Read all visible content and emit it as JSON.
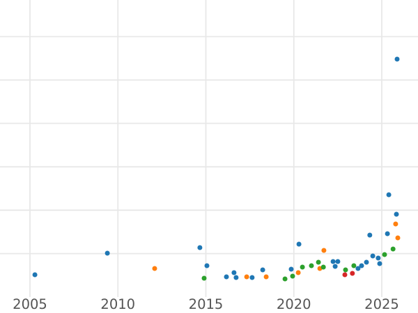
{
  "chart_data": {
    "type": "scatter",
    "title": "",
    "xlabel": "",
    "ylabel": "",
    "grid": true,
    "legend": "none",
    "marker_size_px": 7,
    "x_axis": {
      "ticks": [
        2005,
        2010,
        2015,
        2020,
        2025
      ],
      "tick_labels": [
        "2005",
        "2010",
        "2015",
        "2020",
        "2025"
      ],
      "range": [
        2003.3,
        2027.1
      ]
    },
    "y_axis": {
      "ticks": [
        1,
        2,
        3,
        4,
        5,
        6
      ],
      "tick_labels": [],
      "labels_visible": false,
      "range": [
        0,
        6.84
      ],
      "units": "gridline-spacings-above-bottom-axis"
    },
    "series": [
      {
        "name": "series-blue",
        "color": "#1f77b4",
        "points": [
          [
            2005.28,
            0.513
          ],
          [
            2009.4,
            1.01
          ],
          [
            2014.66,
            1.138
          ],
          [
            2015.06,
            0.721
          ],
          [
            2016.17,
            0.465
          ],
          [
            2016.6,
            0.561
          ],
          [
            2016.72,
            0.449
          ],
          [
            2017.63,
            0.449
          ],
          [
            2018.23,
            0.625
          ],
          [
            2019.85,
            0.641
          ],
          [
            2020.29,
            1.218
          ],
          [
            2022.23,
            0.817
          ],
          [
            2022.35,
            0.705
          ],
          [
            2022.5,
            0.817
          ],
          [
            2023.65,
            0.657
          ],
          [
            2023.85,
            0.721
          ],
          [
            2024.13,
            0.801
          ],
          [
            2024.32,
            1.426
          ],
          [
            2024.49,
            0.946
          ],
          [
            2024.8,
            0.897
          ],
          [
            2024.88,
            0.769
          ],
          [
            2025.32,
            1.458
          ],
          [
            2025.4,
            2.356
          ],
          [
            2025.83,
            1.907
          ],
          [
            2025.87,
            5.481
          ]
        ]
      },
      {
        "name": "series-orange",
        "color": "#ff7f0e",
        "points": [
          [
            2012.09,
            0.657
          ],
          [
            2017.32,
            0.465
          ],
          [
            2018.43,
            0.465
          ],
          [
            2020.25,
            0.561
          ],
          [
            2021.48,
            0.657
          ],
          [
            2021.71,
            1.074
          ],
          [
            2025.79,
            1.683
          ],
          [
            2025.91,
            1.362
          ]
        ]
      },
      {
        "name": "series-green",
        "color": "#2ca02c",
        "points": [
          [
            2014.9,
            0.433
          ],
          [
            2019.5,
            0.417
          ],
          [
            2019.93,
            0.481
          ],
          [
            2020.49,
            0.689
          ],
          [
            2021.0,
            0.721
          ],
          [
            2021.4,
            0.801
          ],
          [
            2021.68,
            0.689
          ],
          [
            2022.94,
            0.625
          ],
          [
            2023.41,
            0.721
          ],
          [
            2025.16,
            0.978
          ],
          [
            2025.64,
            1.106
          ]
        ]
      },
      {
        "name": "series-red",
        "color": "#d62728",
        "points": [
          [
            2022.9,
            0.513
          ],
          [
            2023.33,
            0.545
          ]
        ]
      }
    ]
  },
  "colors": {
    "background": "#ffffff",
    "gridline": "#e8e8e8",
    "tick_label": "#545454"
  }
}
